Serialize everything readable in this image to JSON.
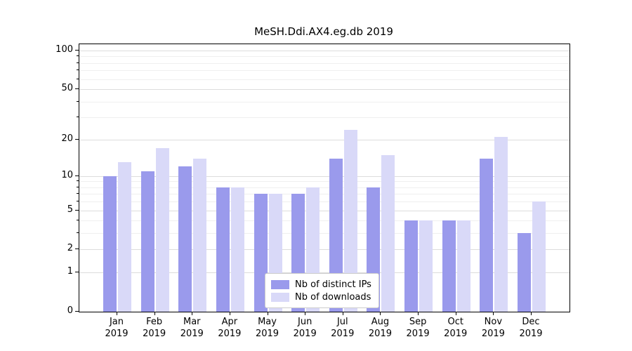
{
  "chart_data": {
    "type": "bar",
    "title": "MeSH.Ddi.AX4.eg.db 2019",
    "categories": [
      "Jan",
      "Feb",
      "Mar",
      "Apr",
      "May",
      "Jun",
      "Jul",
      "Aug",
      "Sep",
      "Oct",
      "Nov",
      "Dec"
    ],
    "year_label": "2019",
    "series": [
      {
        "name": "Nb of distinct IPs",
        "color": "#9a9aec",
        "values": [
          10,
          11,
          12,
          8,
          7,
          7,
          14,
          8,
          4,
          4,
          14,
          3
        ]
      },
      {
        "name": "Nb of downloads",
        "color": "#d9d9f8",
        "values": [
          13,
          17,
          14,
          8,
          7,
          8,
          24,
          15,
          4,
          4,
          21,
          6
        ]
      }
    ],
    "scale": "log1p",
    "ylim": [
      0,
      112
    ],
    "y_ticks": [
      0,
      1,
      2,
      5,
      10,
      20,
      50,
      100
    ],
    "y_minor_ticks": [
      3,
      4,
      6,
      7,
      8,
      9,
      30,
      40,
      60,
      70,
      80,
      90
    ],
    "grid": "on",
    "legend_position": "lower center"
  }
}
